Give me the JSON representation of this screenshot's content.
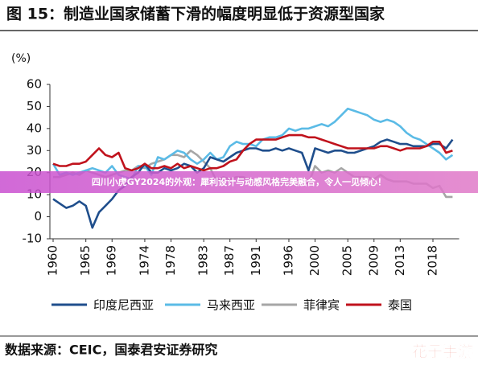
{
  "chart_data": {
    "type": "line",
    "title": "图 15：制造业国家储蓄下滑的幅度明显低于资源型国家",
    "y_label": "(%)",
    "source": "数据来源：CEIC，国泰君安证券研究",
    "x": [
      1960,
      1961,
      1962,
      1963,
      1964,
      1965,
      1966,
      1967,
      1968,
      1969,
      1970,
      1971,
      1972,
      1973,
      1974,
      1975,
      1976,
      1977,
      1978,
      1979,
      1980,
      1981,
      1982,
      1983,
      1984,
      1985,
      1986,
      1987,
      1988,
      1989,
      1990,
      1991,
      1992,
      1993,
      1994,
      1995,
      1996,
      1997,
      1998,
      1999,
      2000,
      2001,
      2002,
      2003,
      2004,
      2005,
      2006,
      2007,
      2008,
      2009,
      2010,
      2011,
      2012,
      2013,
      2014,
      2015,
      2016,
      2017,
      2018,
      2019,
      2020,
      2021
    ],
    "xlim": [
      1960,
      2022
    ],
    "xticks": [
      1960,
      1965,
      1969,
      1974,
      1978,
      1983,
      1987,
      1991,
      1996,
      2000,
      2005,
      2009,
      2013,
      2018
    ],
    "ylim": [
      -10,
      60
    ],
    "yticks": [
      -10,
      0,
      10,
      20,
      30,
      40,
      50,
      60
    ],
    "legend": "bottom",
    "series": [
      {
        "name": "印度尼西亚",
        "color": "#1f4e8c",
        "values": [
          8,
          6,
          4,
          5,
          7,
          5,
          -5,
          2,
          5,
          8,
          12,
          14,
          18,
          20,
          24,
          20,
          20,
          22,
          21,
          22,
          24,
          23,
          20,
          22,
          27,
          26,
          25,
          27,
          29,
          30,
          31,
          31,
          30,
          30,
          31,
          30,
          31,
          30,
          29,
          21,
          31,
          30,
          29,
          30,
          30,
          29,
          29,
          30,
          31,
          32,
          34,
          35,
          34,
          33,
          33,
          32,
          32,
          32,
          33,
          33,
          31,
          35
        ]
      },
      {
        "name": "马来西亚",
        "color": "#5bbbe6",
        "values": [
          24,
          19,
          20,
          19,
          20,
          21,
          22,
          21,
          20,
          23,
          19,
          18,
          17,
          23,
          23,
          19,
          27,
          26,
          28,
          30,
          29,
          26,
          24,
          26,
          29,
          26,
          27,
          32,
          34,
          33,
          33,
          32,
          35,
          36,
          36,
          37,
          40,
          39,
          40,
          40,
          41,
          42,
          41,
          43,
          46,
          49,
          48,
          47,
          46,
          44,
          43,
          44,
          43,
          41,
          38,
          36,
          35,
          33,
          31,
          29,
          26,
          28
        ]
      },
      {
        "name": "菲律宾",
        "color": "#a6a6a6",
        "values": [
          18,
          18,
          19,
          20,
          19,
          21,
          20,
          19,
          18,
          19,
          20,
          21,
          21,
          23,
          22,
          24,
          25,
          26,
          28,
          28,
          27,
          30,
          28,
          25,
          22,
          16,
          18,
          17,
          18,
          18,
          17,
          16,
          15,
          16,
          16,
          15,
          16,
          15,
          16,
          15,
          23,
          20,
          21,
          20,
          22,
          20,
          18,
          18,
          18,
          17,
          19,
          17,
          16,
          16,
          16,
          15,
          15,
          15,
          13,
          14,
          9,
          9
        ]
      },
      {
        "name": "泰国",
        "color": "#c0121c",
        "values": [
          24,
          23,
          23,
          24,
          24,
          25,
          28,
          31,
          28,
          27,
          29,
          22,
          21,
          22,
          24,
          22,
          22,
          23,
          22,
          24,
          22,
          23,
          22,
          21,
          22,
          22,
          23,
          25,
          26,
          30,
          33,
          35,
          35,
          35,
          35,
          36,
          37,
          37,
          37,
          36,
          36,
          35,
          34,
          33,
          32,
          31,
          31,
          31,
          31,
          31,
          32,
          32,
          31,
          30,
          31,
          31,
          31,
          32,
          34,
          34,
          29,
          30
        ]
      }
    ]
  },
  "overlay_banner": "四川小虎GY2024的外观：犀利设计与动感风格完美融合，令人一见倾心！",
  "watermark": "花子手游"
}
